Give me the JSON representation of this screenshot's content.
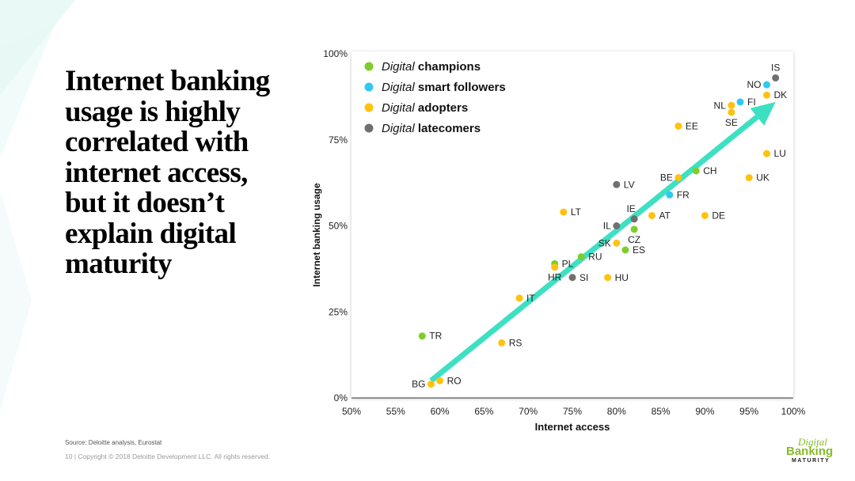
{
  "headline_lines": [
    "Internet banking",
    "usage is highly",
    "correlated with",
    "internet access,",
    "but it doesn’t",
    "explain digital",
    "maturity"
  ],
  "source": "Source: Deloitte analysis, Eurostat",
  "footer": "10  |  Copyright © 2018 Deloitte Development LLC. All rights reserved.",
  "logo": {
    "line1": "Digital",
    "line2": "Banking",
    "line3": "MATURITY"
  },
  "colors": {
    "champions": "#7dce2a",
    "smart_followers": "#2ec9f3",
    "adopters": "#ffc20e",
    "latecomers": "#6f6f6f",
    "arrow": "#3ee0c3"
  },
  "chart_data": {
    "type": "scatter",
    "title": "",
    "xlabel": "Internet access",
    "ylabel": "Internet banking usage",
    "xlim": [
      50,
      100
    ],
    "ylim": [
      0,
      100
    ],
    "x_ticks": [
      50,
      55,
      60,
      65,
      70,
      75,
      80,
      85,
      90,
      95,
      100
    ],
    "y_ticks": [
      0,
      25,
      50,
      75,
      100
    ],
    "x_tick_labels": [
      "50%",
      "55%",
      "60%",
      "65%",
      "70%",
      "75%",
      "80%",
      "85%",
      "90%",
      "95%",
      "100%"
    ],
    "y_tick_labels": [
      "0%",
      "25%",
      "50%",
      "75%",
      "100%"
    ],
    "grid": false,
    "legend_position": "top-left",
    "legend": [
      {
        "prefix": "Digital",
        "name": "champions",
        "group": "champions"
      },
      {
        "prefix": "Digital",
        "name": "smart followers",
        "group": "smart_followers"
      },
      {
        "prefix": "Digital",
        "name": "adopters",
        "group": "adopters"
      },
      {
        "prefix": "Digital",
        "name": "latecomers",
        "group": "latecomers"
      }
    ],
    "trend_arrow": {
      "from": [
        59,
        5
      ],
      "to": [
        98,
        86
      ]
    },
    "points": [
      {
        "label": "IS",
        "x": 98,
        "y": 93,
        "group": "latecomers",
        "anchor": "above"
      },
      {
        "label": "NO",
        "x": 97,
        "y": 91,
        "group": "smart_followers",
        "anchor": "left"
      },
      {
        "label": "DK",
        "x": 97,
        "y": 88,
        "group": "adopters",
        "anchor": "right"
      },
      {
        "label": "FI",
        "x": 94,
        "y": 86,
        "group": "smart_followers",
        "anchor": "right"
      },
      {
        "label": "NL",
        "x": 93,
        "y": 85,
        "group": "adopters",
        "anchor": "left"
      },
      {
        "label": "SE",
        "x": 93,
        "y": 83,
        "group": "adopters",
        "anchor": "below"
      },
      {
        "label": "EE",
        "x": 87,
        "y": 79,
        "group": "adopters",
        "anchor": "right"
      },
      {
        "label": "LU",
        "x": 97,
        "y": 71,
        "group": "adopters",
        "anchor": "right"
      },
      {
        "label": "CH",
        "x": 89,
        "y": 66,
        "group": "champions",
        "anchor": "right"
      },
      {
        "label": "BE",
        "x": 87,
        "y": 64,
        "group": "adopters",
        "anchor": "left"
      },
      {
        "label": "UK",
        "x": 95,
        "y": 64,
        "group": "adopters",
        "anchor": "right"
      },
      {
        "label": "FR",
        "x": 86,
        "y": 59,
        "group": "smart_followers",
        "anchor": "right"
      },
      {
        "label": "LV",
        "x": 80,
        "y": 62,
        "group": "latecomers",
        "anchor": "right"
      },
      {
        "label": "LT",
        "x": 74,
        "y": 54,
        "group": "adopters",
        "anchor": "right"
      },
      {
        "label": "IE",
        "x": 82,
        "y": 52,
        "group": "latecomers",
        "anchor": "above-left"
      },
      {
        "label": "AT",
        "x": 84,
        "y": 53,
        "group": "adopters",
        "anchor": "right"
      },
      {
        "label": "DE",
        "x": 90,
        "y": 53,
        "group": "adopters",
        "anchor": "right"
      },
      {
        "label": "IL",
        "x": 80,
        "y": 50,
        "group": "latecomers",
        "anchor": "left"
      },
      {
        "label": "CZ",
        "x": 82,
        "y": 49,
        "group": "champions",
        "anchor": "below"
      },
      {
        "label": "SK",
        "x": 80,
        "y": 45,
        "group": "adopters",
        "anchor": "left"
      },
      {
        "label": "ES",
        "x": 81,
        "y": 43,
        "group": "champions",
        "anchor": "right"
      },
      {
        "label": "RU",
        "x": 76,
        "y": 41,
        "group": "champions",
        "anchor": "right"
      },
      {
        "label": "PL",
        "x": 73,
        "y": 39,
        "group": "champions",
        "anchor": "right"
      },
      {
        "label": "HR",
        "x": 73,
        "y": 38,
        "group": "adopters",
        "anchor": "below"
      },
      {
        "label": "SI",
        "x": 75,
        "y": 35,
        "group": "latecomers",
        "anchor": "right"
      },
      {
        "label": "HU",
        "x": 79,
        "y": 35,
        "group": "adopters",
        "anchor": "right"
      },
      {
        "label": "IT",
        "x": 69,
        "y": 29,
        "group": "adopters",
        "anchor": "right"
      },
      {
        "label": "TR",
        "x": 58,
        "y": 18,
        "group": "champions",
        "anchor": "right"
      },
      {
        "label": "RS",
        "x": 67,
        "y": 16,
        "group": "adopters",
        "anchor": "right"
      },
      {
        "label": "BG",
        "x": 59,
        "y": 4,
        "group": "adopters",
        "anchor": "left"
      },
      {
        "label": "RO",
        "x": 60,
        "y": 5,
        "group": "adopters",
        "anchor": "right"
      }
    ]
  }
}
